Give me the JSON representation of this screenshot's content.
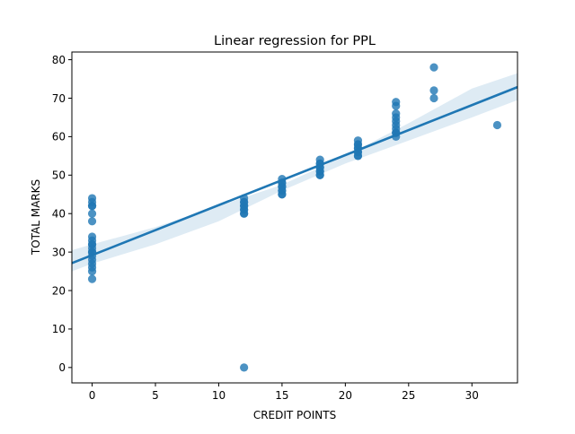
{
  "chart_data": {
    "type": "scatter",
    "title": "Linear regression for PPL",
    "xlabel": "CREDIT POINTS",
    "ylabel": "TOTAL MARKS",
    "xlim": [
      -1.6,
      33.6
    ],
    "ylim": [
      -4,
      82
    ],
    "xticks": [
      0,
      5,
      10,
      15,
      20,
      25,
      30
    ],
    "yticks": [
      0,
      10,
      20,
      30,
      40,
      50,
      60,
      70,
      80
    ],
    "grid": false,
    "legend": "none",
    "colors": {
      "points": "#1f77b4",
      "line": "#1f77b4",
      "band": "#1f77b4"
    },
    "series": [
      {
        "x": [
          0,
          0,
          0,
          0,
          0,
          0,
          0,
          0,
          0,
          0,
          0,
          0,
          0,
          0,
          0,
          0,
          0,
          0,
          0,
          12,
          12,
          12,
          12,
          12,
          12,
          12,
          12,
          12,
          12,
          15,
          15,
          15,
          15,
          15,
          15,
          15,
          15,
          15,
          18,
          18,
          18,
          18,
          18,
          18,
          18,
          18,
          18,
          21,
          21,
          21,
          21,
          21,
          21,
          21,
          21,
          21,
          24,
          24,
          24,
          24,
          24,
          24,
          24,
          24,
          24,
          24,
          27,
          27,
          27,
          32
        ],
        "y": [
          44,
          43,
          42,
          40,
          38,
          34,
          33,
          32,
          31,
          30,
          29,
          28,
          27,
          26,
          25,
          23,
          42,
          32,
          30,
          44,
          43,
          42,
          41,
          40,
          42,
          41,
          43,
          40,
          0,
          49,
          48,
          47,
          46,
          45,
          47,
          46,
          48,
          45,
          54,
          53,
          52,
          51,
          50,
          53,
          52,
          51,
          50,
          59,
          58,
          57,
          56,
          55,
          58,
          57,
          56,
          55,
          69,
          68,
          66,
          64,
          63,
          62,
          61,
          60,
          65,
          61,
          78,
          72,
          70,
          63
        ]
      }
    ],
    "regression": {
      "intercept": 29.2,
      "slope": 1.3
    },
    "confidence_band": {
      "x": [
        -1.6,
        0,
        5,
        10,
        15,
        20,
        25,
        30,
        33.6
      ],
      "lower": [
        25.0,
        27.0,
        32.0,
        38.0,
        46.0,
        53.0,
        59.0,
        65.0,
        69.5
      ],
      "upper": [
        30.5,
        32.0,
        36.5,
        42.0,
        47.5,
        55.0,
        63.5,
        72.5,
        76.5
      ]
    }
  }
}
